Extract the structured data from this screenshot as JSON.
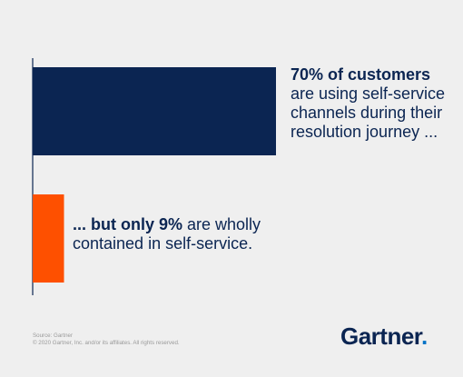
{
  "chart_data": {
    "type": "bar",
    "orientation": "horizontal",
    "categories": [
      "customers using self-service channels",
      "wholly contained in self-service"
    ],
    "values": [
      70,
      9
    ],
    "unit": "%",
    "xlim": [
      0,
      100
    ],
    "colors": [
      "#0b2552",
      "#fe5000"
    ],
    "grid": false,
    "legend": "none",
    "annotations": [
      {
        "bold": "70% of customers",
        "text": "are using self-service channels during their resolution journey ..."
      },
      {
        "bold": "... but only 9%",
        "text": " are wholly contained in self-service."
      }
    ]
  },
  "footer": {
    "source": "Source: Gartner",
    "copyright": "© 2020 Gartner, Inc. and/or its affiliates. All rights reserved."
  },
  "logo": {
    "text": "Gartner",
    "dot": "."
  }
}
